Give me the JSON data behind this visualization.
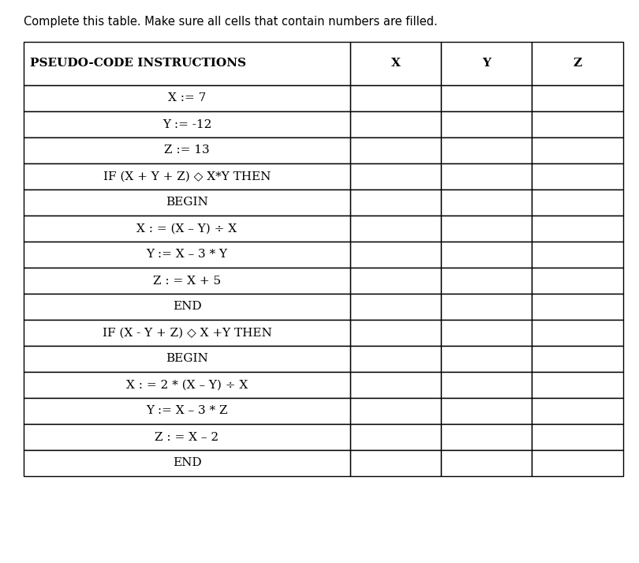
{
  "title": "Complete this table. Make sure all cells that contain numbers are filled.",
  "title_fontsize": 10.5,
  "header_row": [
    "PSEUDO-CODE INSTRUCTIONS",
    "X",
    "Y",
    "Z"
  ],
  "rows": [
    [
      "X := 7",
      "",
      "",
      ""
    ],
    [
      "Y := -12",
      "",
      "",
      ""
    ],
    [
      "Z := 13",
      "",
      "",
      ""
    ],
    [
      "IF (X + Y + Z) ◇ X*Y THEN",
      "",
      "",
      ""
    ],
    [
      "BEGIN",
      "",
      "",
      ""
    ],
    [
      "X : = (X – Y) ÷ X",
      "",
      "",
      ""
    ],
    [
      "Y := X – 3 * Y",
      "",
      "",
      ""
    ],
    [
      "Z : = X + 5",
      "",
      "",
      ""
    ],
    [
      "END",
      "",
      "",
      ""
    ],
    [
      "IF (X - Y + Z) ◇ X +Y THEN",
      "",
      "",
      ""
    ],
    [
      "BEGIN",
      "",
      "",
      ""
    ],
    [
      "X : = 2 * (X – Y) ÷ X",
      "",
      "",
      ""
    ],
    [
      "Y := X – 3 * Z",
      "",
      "",
      ""
    ],
    [
      "Z : = X – 2",
      "",
      "",
      ""
    ],
    [
      "END",
      "",
      "",
      ""
    ]
  ],
  "background_color": "#ffffff",
  "border_color": "#000000",
  "text_color": "#000000"
}
